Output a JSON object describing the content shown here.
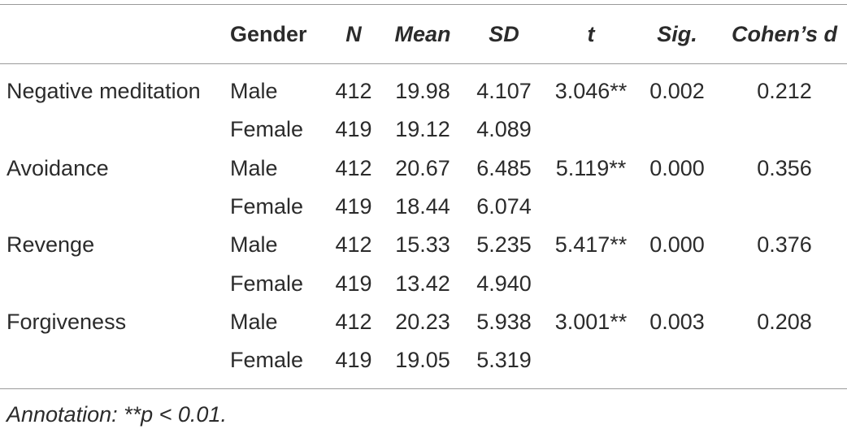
{
  "table": {
    "header": [
      "Gender",
      "N",
      "Mean",
      "SD",
      "t",
      "Sig.",
      "Cohen’s d"
    ],
    "groups": [
      {
        "label": "Negative meditation",
        "rows": [
          [
            "Male",
            "412",
            "19.98",
            "4.107",
            "3.046**",
            "0.002",
            "0.212"
          ],
          [
            "Female",
            "419",
            "19.12",
            "4.089"
          ]
        ]
      },
      {
        "label": "Avoidance",
        "rows": [
          [
            "Male",
            "412",
            "20.67",
            "6.485",
            "5.119**",
            "0.000",
            "0.356"
          ],
          [
            "Female",
            "419",
            "18.44",
            "6.074"
          ]
        ]
      },
      {
        "label": "Revenge",
        "rows": [
          [
            "Male",
            "412",
            "15.33",
            "5.235",
            "5.417**",
            "0.000",
            "0.376"
          ],
          [
            "Female",
            "419",
            "13.42",
            "4.940"
          ]
        ]
      },
      {
        "label": "Forgiveness",
        "rows": [
          [
            "Male",
            "412",
            "20.23",
            "5.938",
            "3.001**",
            "0.003",
            "0.208"
          ],
          [
            "Female",
            "419",
            "19.05",
            "5.319"
          ]
        ]
      }
    ],
    "annotation": "Annotation: **p < 0.01."
  }
}
